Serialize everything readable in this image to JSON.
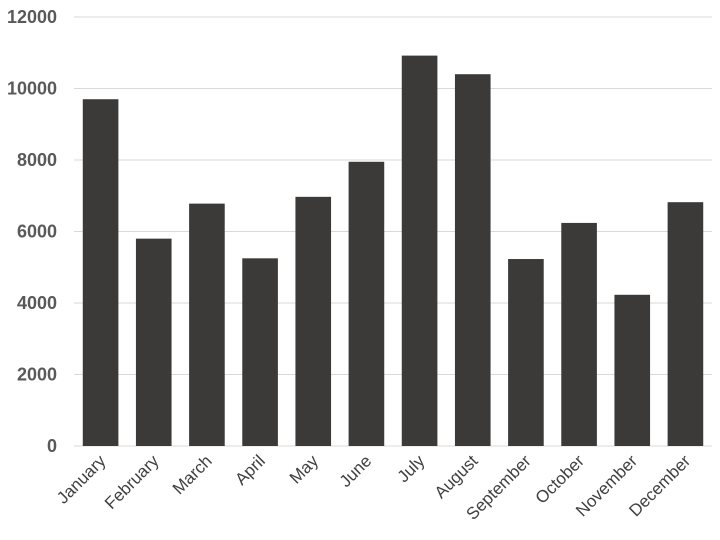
{
  "chart_data": {
    "type": "bar",
    "categories": [
      "January",
      "February",
      "March",
      "April",
      "May",
      "June",
      "July",
      "August",
      "September",
      "October",
      "November",
      "December"
    ],
    "values": [
      9700,
      5800,
      6780,
      5250,
      6970,
      7950,
      10920,
      10400,
      5230,
      6240,
      4230,
      6820
    ],
    "ylim": [
      0,
      12000
    ],
    "yticks": [
      0,
      2000,
      4000,
      6000,
      8000,
      10000,
      12000
    ],
    "ytick_labels": [
      "0",
      "2000",
      "4000",
      "6000",
      "8000",
      "10000",
      "12000"
    ],
    "title": "",
    "xlabel": "",
    "ylabel": "",
    "grid": true,
    "legend": false,
    "colors": {
      "bar": "#3b3a39",
      "grid": "#d9d9d9",
      "ytick_text": "#595959",
      "xtick_text": "#404040"
    }
  }
}
